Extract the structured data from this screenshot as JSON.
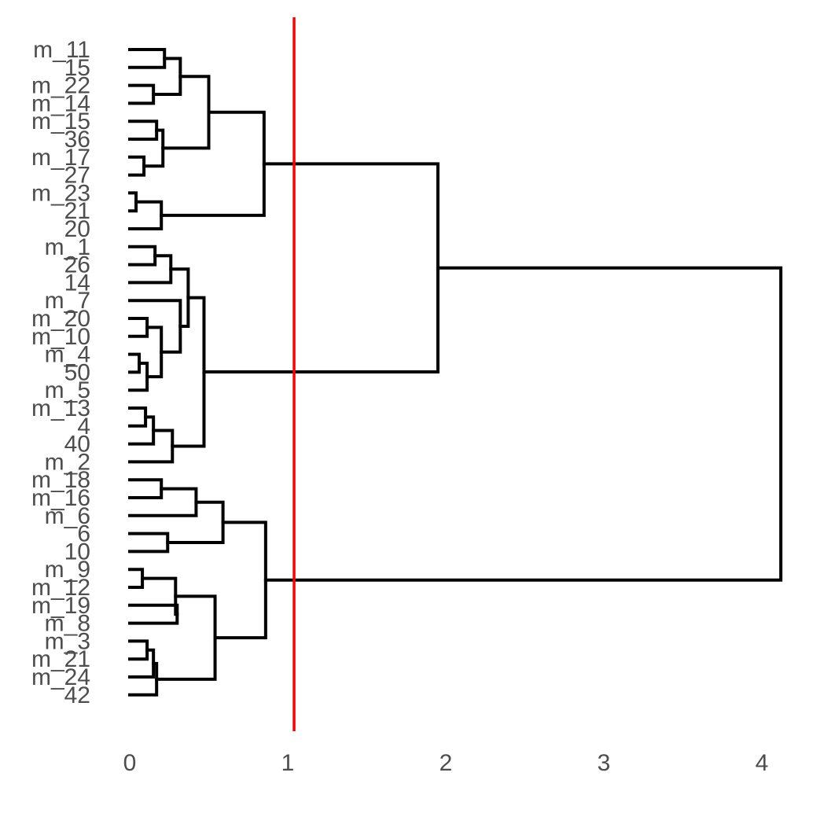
{
  "chart_data": {
    "type": "dendrogram",
    "orientation": "horizontal",
    "xlim": [
      0,
      4.15
    ],
    "x_ticks": [
      0,
      1,
      2,
      3,
      4
    ],
    "x_tick_labels": [
      "0",
      "1",
      "2",
      "3",
      "4"
    ],
    "cut_height": 1.04,
    "cut_color": "#ff0000",
    "branch_color": "#000000",
    "leaves": [
      "m_11",
      "15",
      "m_22",
      "m_14",
      "m_15",
      "36",
      "m_17",
      "27",
      "m_23",
      "21",
      "20",
      "m_1",
      "26",
      "14",
      "m_7",
      "m_20",
      "m_10",
      "m_4",
      "50",
      "m_5",
      "m_13",
      "4",
      "40",
      "m_2",
      "m_18",
      "m_16",
      "m_6",
      "6",
      "10",
      "m_9",
      "m_12",
      "m_19",
      "m_8",
      "m_3",
      "m_21",
      "m_24",
      "42"
    ],
    "merges": [
      {
        "id": "a1",
        "children": [
          "L0",
          "L1"
        ],
        "height": 0.22
      },
      {
        "id": "a2",
        "children": [
          "L2",
          "L3"
        ],
        "height": 0.15
      },
      {
        "id": "a3",
        "children": [
          "a1",
          "a2"
        ],
        "height": 0.32
      },
      {
        "id": "a4",
        "children": [
          "L4",
          "L5"
        ],
        "height": 0.17
      },
      {
        "id": "a5",
        "children": [
          "L6",
          "L7"
        ],
        "height": 0.09
      },
      {
        "id": "a6",
        "children": [
          "a4",
          "a5"
        ],
        "height": 0.21
      },
      {
        "id": "a7",
        "children": [
          "a3",
          "a6"
        ],
        "height": 0.5
      },
      {
        "id": "a8",
        "children": [
          "L8",
          "L9"
        ],
        "height": 0.04
      },
      {
        "id": "a9",
        "children": [
          "a8",
          "L10"
        ],
        "height": 0.2
      },
      {
        "id": "a10",
        "children": [
          "a7",
          "a9"
        ],
        "height": 0.85
      },
      {
        "id": "b1",
        "children": [
          "L11",
          "L12"
        ],
        "height": 0.16
      },
      {
        "id": "b2",
        "children": [
          "b1",
          "L13"
        ],
        "height": 0.26
      },
      {
        "id": "b3",
        "children": [
          "L15",
          "L16"
        ],
        "height": 0.11
      },
      {
        "id": "b4",
        "children": [
          "L17",
          "L18"
        ],
        "height": 0.06
      },
      {
        "id": "b5",
        "children": [
          "b4",
          "L19"
        ],
        "height": 0.11
      },
      {
        "id": "b6",
        "children": [
          "b3",
          "b5"
        ],
        "height": 0.2
      },
      {
        "id": "b7",
        "children": [
          "L14",
          "b6"
        ],
        "height": 0.32
      },
      {
        "id": "b8",
        "children": [
          "b2",
          "b7"
        ],
        "height": 0.37
      },
      {
        "id": "b9",
        "children": [
          "L20",
          "L21"
        ],
        "height": 0.1
      },
      {
        "id": "b10",
        "children": [
          "b9",
          "L22"
        ],
        "height": 0.15
      },
      {
        "id": "b11",
        "children": [
          "b10",
          "L23"
        ],
        "height": 0.27
      },
      {
        "id": "b12",
        "children": [
          "b8",
          "b11"
        ],
        "height": 0.47
      },
      {
        "id": "c1",
        "children": [
          "a10",
          "b12"
        ],
        "height": 1.95
      },
      {
        "id": "d1",
        "children": [
          "L24",
          "L25"
        ],
        "height": 0.2
      },
      {
        "id": "d2",
        "children": [
          "d1",
          "L26"
        ],
        "height": 0.42
      },
      {
        "id": "d3",
        "children": [
          "L27",
          "L28"
        ],
        "height": 0.24
      },
      {
        "id": "d4",
        "children": [
          "d2",
          "d3"
        ],
        "height": 0.59
      },
      {
        "id": "d5",
        "children": [
          "L29",
          "L30"
        ],
        "height": 0.08
      },
      {
        "id": "d6",
        "children": [
          "L31",
          "L32"
        ],
        "height": 0.3
      },
      {
        "id": "d7",
        "children": [
          "d5",
          "d6"
        ],
        "height": 0.29
      },
      {
        "id": "d8",
        "children": [
          "L33",
          "L34"
        ],
        "height": 0.11
      },
      {
        "id": "d9",
        "children": [
          "d8",
          "L35"
        ],
        "height": 0.15
      },
      {
        "id": "d10",
        "children": [
          "d9",
          "L36"
        ],
        "height": 0.17
      },
      {
        "id": "d11",
        "children": [
          "d7",
          "d10"
        ],
        "height": 0.54
      },
      {
        "id": "d12",
        "children": [
          "d4",
          "d11"
        ],
        "height": 0.86
      },
      {
        "id": "root",
        "children": [
          "c1",
          "d12"
        ],
        "height": 4.12
      }
    ]
  }
}
